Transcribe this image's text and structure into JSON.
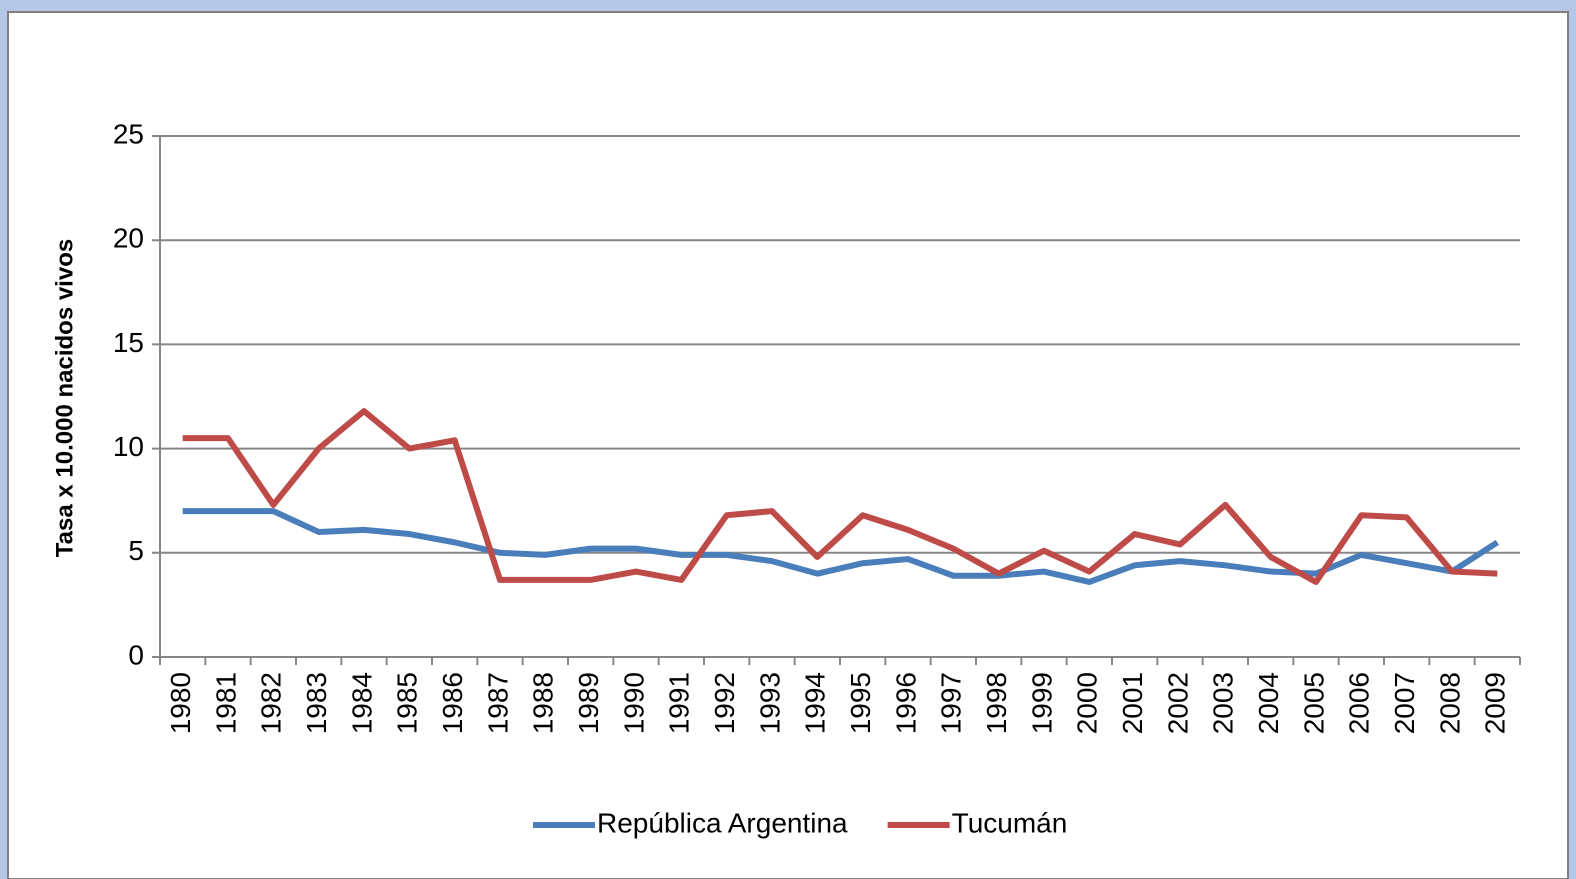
{
  "chart_data": {
    "type": "line",
    "y_label": "Tasa x 10.000 nacidos vivos",
    "categories": [
      "1980",
      "1981",
      "1982",
      "1983",
      "1984",
      "1985",
      "1986",
      "1987",
      "1988",
      "1989",
      "1990",
      "1991",
      "1992",
      "1993",
      "1994",
      "1995",
      "1996",
      "1997",
      "1998",
      "1999",
      "2000",
      "2001",
      "2002",
      "2003",
      "2004",
      "2005",
      "2006",
      "2007",
      "2008",
      "2009"
    ],
    "series": [
      {
        "name": "República Argentina",
        "color": "#4a7ebb",
        "values": [
          7.0,
          7.0,
          7.0,
          6.0,
          6.1,
          5.9,
          5.5,
          5.0,
          4.9,
          5.2,
          5.2,
          4.9,
          4.9,
          4.6,
          4.0,
          4.5,
          4.7,
          3.9,
          3.9,
          4.1,
          3.6,
          4.4,
          4.6,
          4.4,
          4.1,
          4.0,
          4.9,
          4.5,
          4.1,
          5.5
        ]
      },
      {
        "name": "Tucumán",
        "color": "#be4b48",
        "values": [
          10.5,
          10.5,
          7.3,
          10.0,
          11.8,
          10.0,
          10.4,
          3.7,
          3.7,
          3.7,
          4.1,
          3.7,
          6.8,
          7.0,
          4.8,
          6.8,
          6.1,
          5.2,
          4.0,
          5.1,
          4.1,
          5.9,
          5.4,
          7.3,
          4.8,
          3.6,
          6.8,
          6.7,
          4.1,
          4.0
        ]
      }
    ],
    "ylim": [
      0,
      25
    ],
    "yticks": [
      0,
      5,
      10,
      15,
      20,
      25
    ],
    "grid": true,
    "legend": "bottom"
  }
}
